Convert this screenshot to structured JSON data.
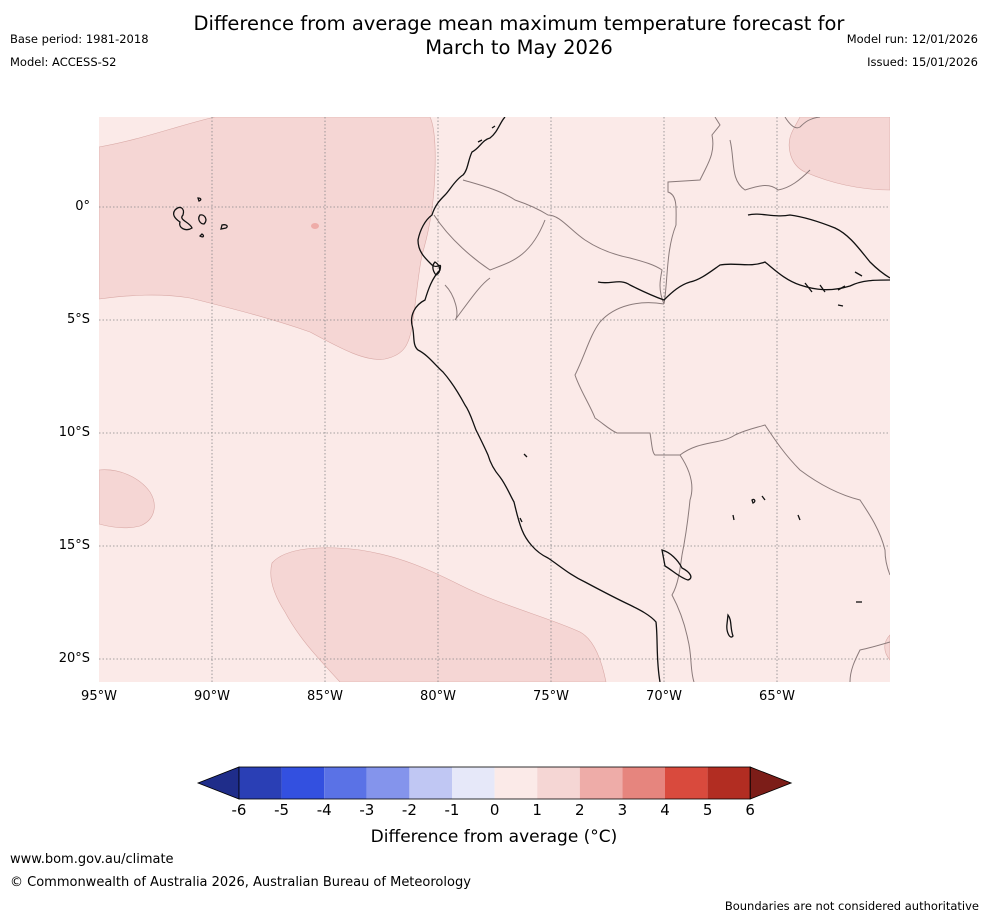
{
  "header": {
    "title_line1": "Difference from average mean maximum temperature forecast for",
    "title_line2": "March to May 2026",
    "base_period": "Base period: 1981-2018",
    "model": "Model: ACCESS-S2",
    "model_run": "Model run: 12/01/2026",
    "issued": "Issued: 15/01/2026"
  },
  "map": {
    "latitude_labels": [
      "0°",
      "5°S",
      "10°S",
      "15°S",
      "20°S"
    ],
    "longitude_labels": [
      "95°W",
      "90°W",
      "85°W",
      "80°W",
      "75°W",
      "70°W",
      "65°W"
    ],
    "background_color": "#fbeae8",
    "anomaly_color": "#f5d6d4",
    "ocean_warm_zones": [
      "Equatorial Pacific",
      "Southeast Pacific",
      "Amazon northeast"
    ]
  },
  "colorbar": {
    "ticks": [
      "-6",
      "-5",
      "-4",
      "-3",
      "-2",
      "-1",
      "0",
      "1",
      "2",
      "3",
      "4",
      "5",
      "6"
    ],
    "colors": [
      "#1f2d8a",
      "#2a3fb5",
      "#3350e0",
      "#5a72e6",
      "#8494ec",
      "#c0c7f3",
      "#e6e8f9",
      "#fbeae8",
      "#f5d6d4",
      "#eeaca8",
      "#e6857e",
      "#d94a3d",
      "#b22d22",
      "#7c1d18"
    ],
    "title": "Difference from average (°C)"
  },
  "footer": {
    "url": "www.bom.gov.au/climate",
    "copyright": "© Commonwealth of Australia 2026, Australian Bureau of Meteorology",
    "note": "Boundaries are not considered authoritative"
  }
}
